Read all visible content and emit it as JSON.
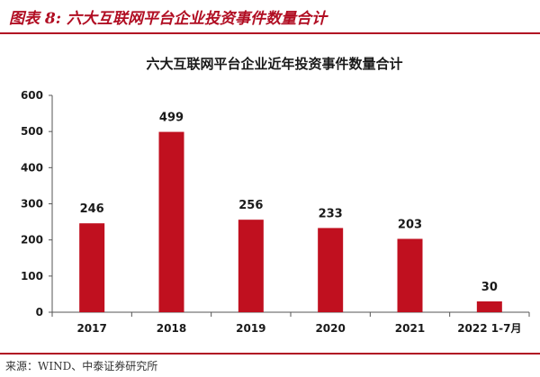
{
  "figure": {
    "caption": "图表 8:  六大互联网平台企业投资事件数量合计",
    "source": "来源：WIND、中泰证券研究所"
  },
  "colors": {
    "accent": "#b10e23",
    "bar": "#c0101f",
    "text": "#1a1a1a"
  },
  "chart_data": {
    "type": "bar",
    "title": "六大互联网平台企业近年投资事件数量合计",
    "xlabel": "",
    "ylabel": "",
    "categories": [
      "2017",
      "2018",
      "2019",
      "2020",
      "2021",
      "2022 1-7月"
    ],
    "values": [
      246,
      499,
      256,
      233,
      203,
      30
    ],
    "ylim": [
      0,
      600
    ],
    "yticks": [
      0,
      100,
      200,
      300,
      400,
      500,
      600
    ],
    "grid": false,
    "legend": "none",
    "data_labels": true
  }
}
